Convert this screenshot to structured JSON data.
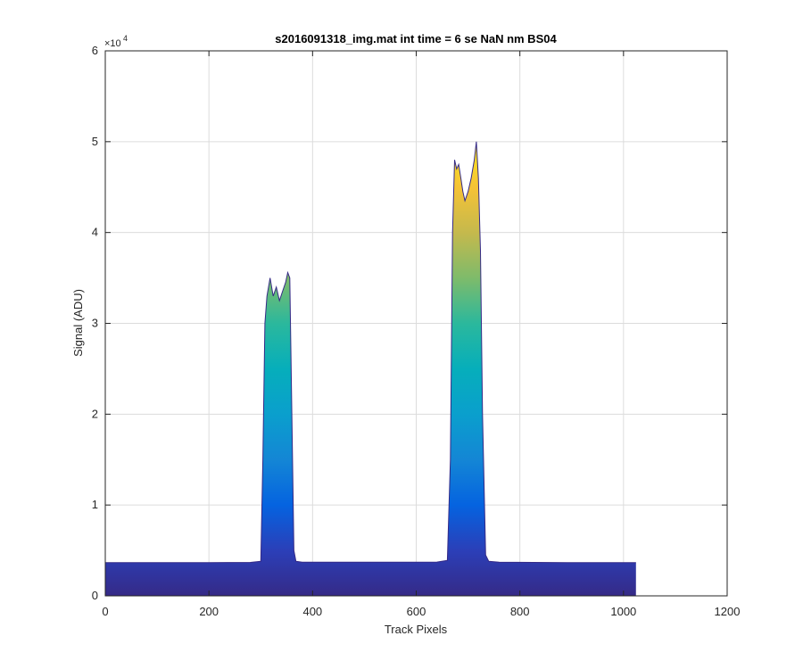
{
  "chart_data": {
    "type": "area",
    "title": "s2016091318_img.mat int time = 6 se  NaN nm BS04",
    "xlabel": "Track Pixels",
    "ylabel": "Signal (ADU)",
    "xlim": [
      0,
      1200
    ],
    "ylim": [
      0,
      60000
    ],
    "x_ticks": [
      0,
      200,
      400,
      600,
      800,
      1000,
      1200
    ],
    "y_ticks": [
      0,
      1,
      2,
      3,
      4,
      5,
      6
    ],
    "y_exponent": "4",
    "y_multiplier_text": "×10",
    "grid": true,
    "colormap": "parula (height-mapped fill)",
    "series": [
      {
        "x": [
          0,
          100,
          200,
          280,
          300,
          304,
          308,
          312,
          318,
          324,
          330,
          336,
          342,
          348,
          352,
          356,
          360,
          364,
          368,
          380,
          500,
          640,
          660,
          666,
          670,
          674,
          678,
          682,
          686,
          690,
          694,
          700,
          706,
          712,
          716,
          720,
          724,
          728,
          734,
          740,
          760,
          900,
          1024
        ],
        "y": [
          3650,
          3650,
          3660,
          3680,
          3800,
          15000,
          30000,
          33000,
          35000,
          33000,
          34000,
          32500,
          33500,
          34500,
          35600,
          35000,
          20000,
          5000,
          3800,
          3700,
          3700,
          3720,
          3900,
          15000,
          40000,
          48000,
          47000,
          47500,
          46000,
          44500,
          43500,
          44500,
          46000,
          48000,
          50000,
          46000,
          38000,
          20000,
          4500,
          3800,
          3700,
          3650,
          3650
        ]
      }
    ]
  }
}
